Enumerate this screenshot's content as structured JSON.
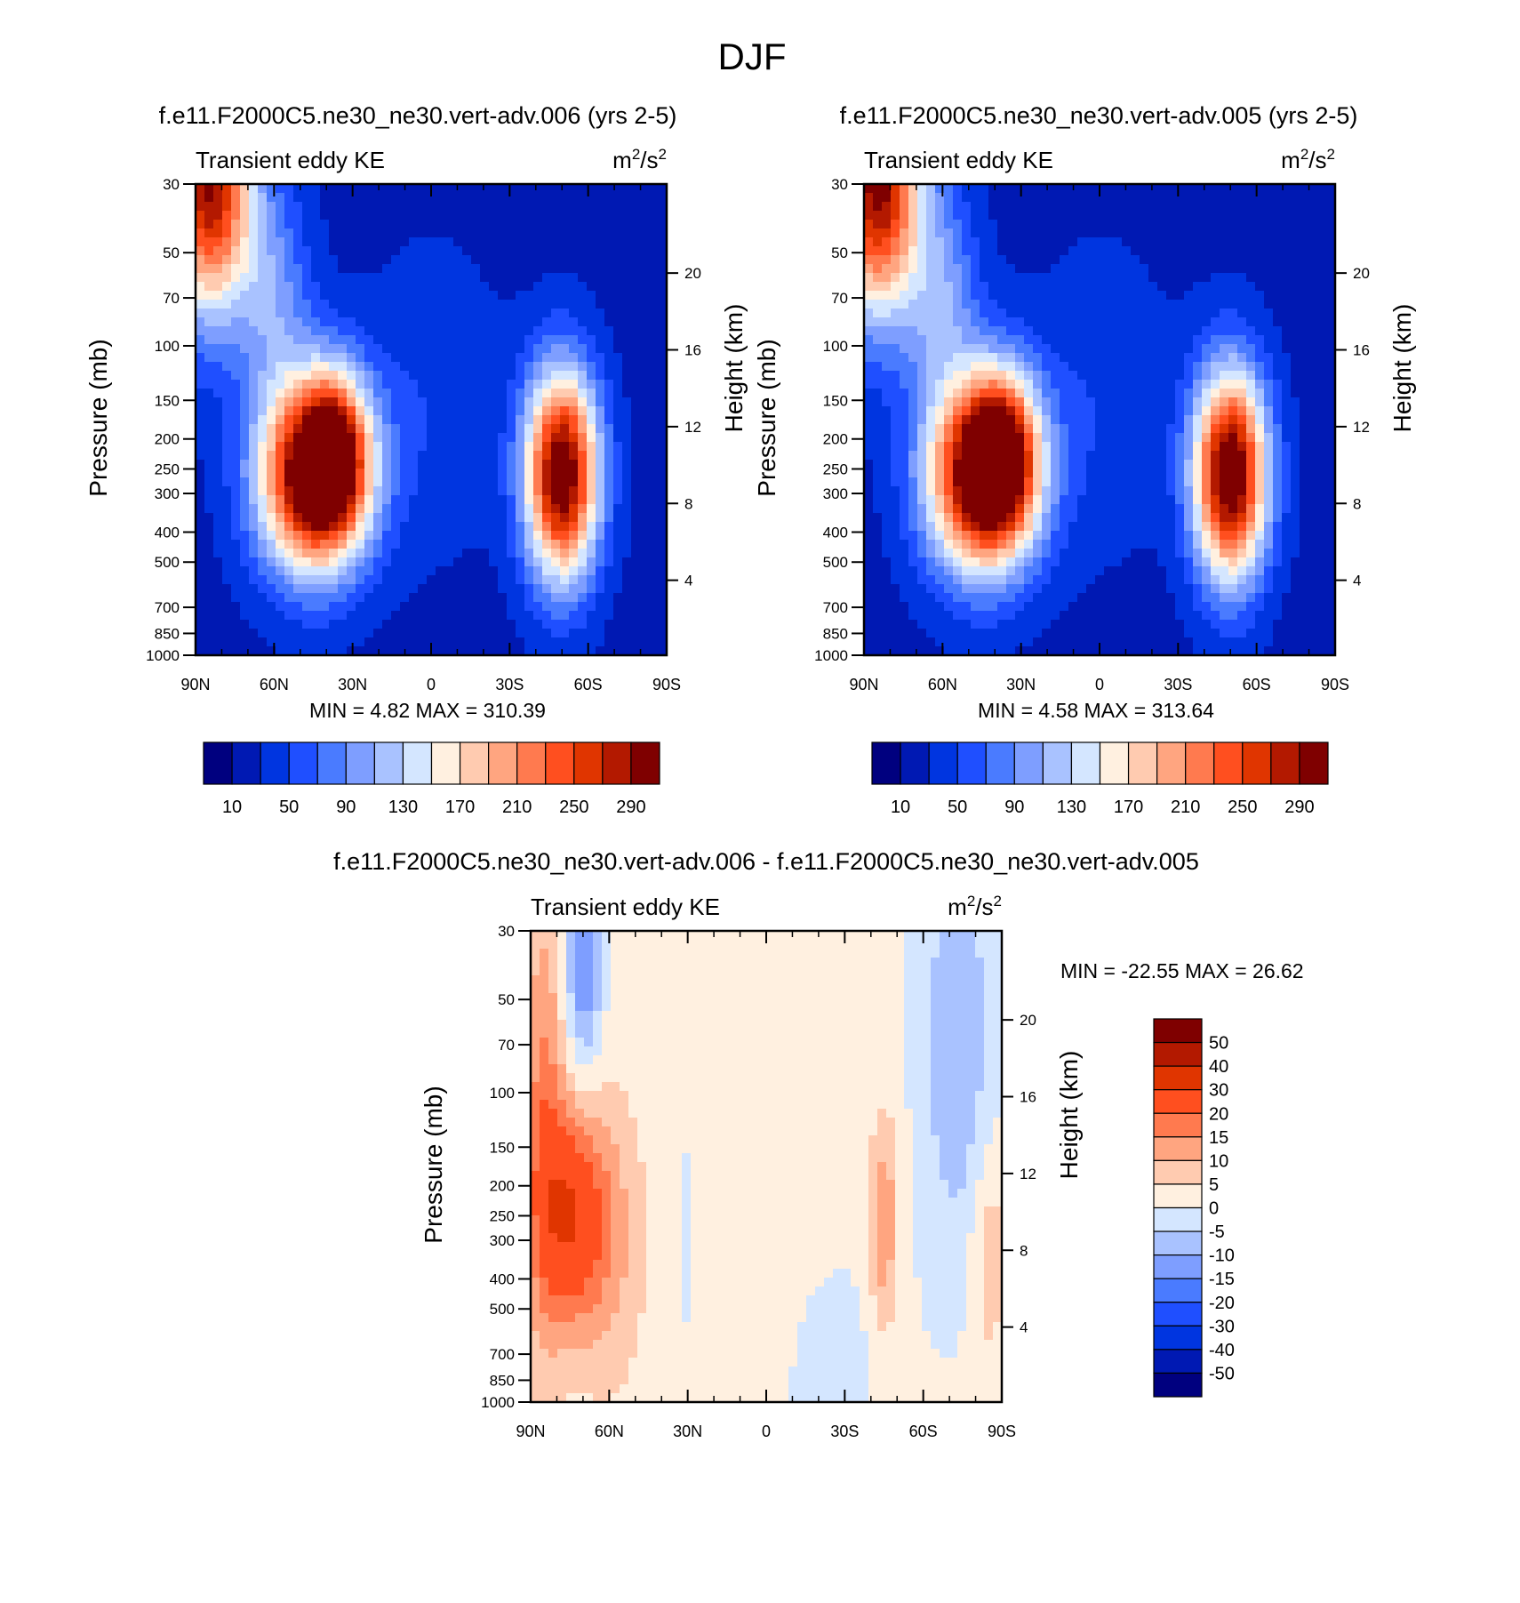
{
  "figure": {
    "title": "DJF"
  },
  "colors": {
    "abs_levels": [
      "#00007f",
      "#0019b3",
      "#0035e0",
      "#1f4fff",
      "#4a7bff",
      "#7e9eff",
      "#a9c2ff",
      "#d4e6ff",
      "#fff0e0",
      "#ffcbb0",
      "#ffa580",
      "#ff7a4f",
      "#ff4f1f",
      "#e03500",
      "#b31900",
      "#7f0000"
    ],
    "diff_levels": [
      "#00007f",
      "#0019b3",
      "#0035e0",
      "#1f4fff",
      "#4a7bff",
      "#7e9eff",
      "#a9c2ff",
      "#d4e6ff",
      "#fff0e0",
      "#ffcbb0",
      "#ffa580",
      "#ff7a4f",
      "#ff4f1f",
      "#e03500",
      "#b31900",
      "#7f0000"
    ]
  },
  "chart_data": [
    {
      "type": "heatmap",
      "title": "f.e11.F2000C5.ne30_ne30.vert-adv.006 (yrs 2-5)",
      "left_label": "Transient eddy KE",
      "units": {
        "base": "m",
        "sup1": "2",
        "mid": "/s",
        "sup2": "2"
      },
      "xlabel": "",
      "ylabel": "Pressure (mb)",
      "y2label": "Height (km)",
      "x_ticks": [
        "90N",
        "60N",
        "30N",
        "0",
        "30S",
        "60S",
        "90S"
      ],
      "x_tick_values": [
        90,
        60,
        30,
        0,
        -30,
        -60,
        -90
      ],
      "y_ticks": [
        30,
        50,
        70,
        100,
        150,
        200,
        250,
        300,
        400,
        500,
        700,
        850,
        1000
      ],
      "y2_ticks": [
        20,
        16,
        12,
        8,
        4
      ],
      "y_scale": "log",
      "ylim": [
        1000,
        30
      ],
      "xlim": [
        90,
        -90
      ],
      "min_label": "MIN =   4.82",
      "max_label": "MAX = 310.39",
      "colorbar": {
        "orientation": "horizontal",
        "labels": [
          "10",
          "50",
          "90",
          "130",
          "170",
          "210",
          "250",
          "290"
        ]
      },
      "blobs": [
        {
          "lat": 45,
          "p": 265,
          "amp": 300,
          "slat": 15,
          "slogp": 0.22
        },
        {
          "lat": 37,
          "p": 215,
          "amp": 140,
          "slat": 9,
          "slogp": 0.18
        },
        {
          "lat": -50,
          "p": 260,
          "amp": 300,
          "slat": 10,
          "slogp": 0.24
        },
        {
          "lat": 85,
          "p": 30,
          "amp": 270,
          "slat": 12,
          "slogp": 0.3
        },
        {
          "lat": 60,
          "p": 70,
          "amp": 70,
          "slat": 10,
          "slogp": 0.25
        },
        {
          "lat": 0,
          "p": 150,
          "amp": 25,
          "slat": 20,
          "slogp": 0.35
        }
      ]
    },
    {
      "type": "heatmap",
      "title": "f.e11.F2000C5.ne30_ne30.vert-adv.005 (yrs 2-5)",
      "left_label": "Transient eddy KE",
      "units": {
        "base": "m",
        "sup1": "2",
        "mid": "/s",
        "sup2": "2"
      },
      "xlabel": "",
      "ylabel": "Pressure (mb)",
      "y2label": "Height (km)",
      "x_ticks": [
        "90N",
        "60N",
        "30N",
        "0",
        "30S",
        "60S",
        "90S"
      ],
      "x_tick_values": [
        90,
        60,
        30,
        0,
        -30,
        -60,
        -90
      ],
      "y_ticks": [
        30,
        50,
        70,
        100,
        150,
        200,
        250,
        300,
        400,
        500,
        700,
        850,
        1000
      ],
      "y2_ticks": [
        20,
        16,
        12,
        8,
        4
      ],
      "y_scale": "log",
      "ylim": [
        1000,
        30
      ],
      "xlim": [
        90,
        -90
      ],
      "min_label": "MIN =   4.58",
      "max_label": "MAX = 313.64",
      "colorbar": {
        "orientation": "horizontal",
        "labels": [
          "10",
          "50",
          "90",
          "130",
          "170",
          "210",
          "250",
          "290"
        ]
      },
      "blobs": [
        {
          "lat": 45,
          "p": 265,
          "amp": 300,
          "slat": 15,
          "slogp": 0.22
        },
        {
          "lat": 37,
          "p": 215,
          "amp": 145,
          "slat": 9,
          "slogp": 0.18
        },
        {
          "lat": -50,
          "p": 260,
          "amp": 305,
          "slat": 10,
          "slogp": 0.24
        },
        {
          "lat": 85,
          "p": 30,
          "amp": 280,
          "slat": 12,
          "slogp": 0.3
        },
        {
          "lat": 60,
          "p": 70,
          "amp": 75,
          "slat": 10,
          "slogp": 0.25
        },
        {
          "lat": 0,
          "p": 150,
          "amp": 25,
          "slat": 20,
          "slogp": 0.35
        }
      ]
    },
    {
      "type": "heatmap",
      "title": "f.e11.F2000C5.ne30_ne30.vert-adv.006 - f.e11.F2000C5.ne30_ne30.vert-adv.005",
      "left_label": "Transient eddy KE",
      "units": {
        "base": "m",
        "sup1": "2",
        "mid": "/s",
        "sup2": "2"
      },
      "xlabel": "",
      "ylabel": "Pressure (mb)",
      "y2label": "Height (km)",
      "x_ticks": [
        "90N",
        "60N",
        "30N",
        "0",
        "30S",
        "60S",
        "90S"
      ],
      "x_tick_values": [
        90,
        60,
        30,
        0,
        -30,
        -60,
        -90
      ],
      "y_ticks": [
        30,
        50,
        70,
        100,
        150,
        200,
        250,
        300,
        400,
        500,
        700,
        850,
        1000
      ],
      "y2_ticks": [
        20,
        16,
        12,
        8,
        4
      ],
      "y_scale": "log",
      "ylim": [
        1000,
        30
      ],
      "xlim": [
        90,
        -90
      ],
      "min_label": "MIN = -22.55",
      "max_label": "MAX =  26.62",
      "colorbar": {
        "orientation": "vertical",
        "labels": [
          "50",
          "40",
          "30",
          "20",
          "15",
          "10",
          "5",
          "0",
          "-5",
          "-10",
          "-15",
          "-20",
          "-30",
          "-40",
          "-50"
        ]
      },
      "blobs": [
        {
          "lat": 75,
          "p": 250,
          "amp": 24,
          "slat": 9,
          "slogp": 0.25
        },
        {
          "lat": 85,
          "p": 120,
          "amp": 14,
          "slat": 6,
          "slogp": 0.55
        },
        {
          "lat": 60,
          "p": 300,
          "amp": 9,
          "slat": 10,
          "slogp": 0.35
        },
        {
          "lat": 70,
          "p": 40,
          "amp": -16,
          "slat": 5,
          "slogp": 0.25
        },
        {
          "lat": -73,
          "p": 70,
          "amp": -11,
          "slat": 10,
          "slogp": 0.5
        },
        {
          "lat": -45,
          "p": 270,
          "amp": 13,
          "slat": 4,
          "slogp": 0.25
        },
        {
          "lat": 30,
          "p": 280,
          "amp": -4,
          "slat": 3,
          "slogp": 0.3
        },
        {
          "lat": -25,
          "p": 800,
          "amp": -3,
          "slat": 20,
          "slogp": 0.3
        },
        {
          "lat": -85,
          "p": 330,
          "amp": 8,
          "slat": 5,
          "slogp": 0.25
        },
        {
          "lat": 10,
          "p": 200,
          "amp": 3,
          "slat": 15,
          "slogp": 0.6
        }
      ]
    }
  ]
}
